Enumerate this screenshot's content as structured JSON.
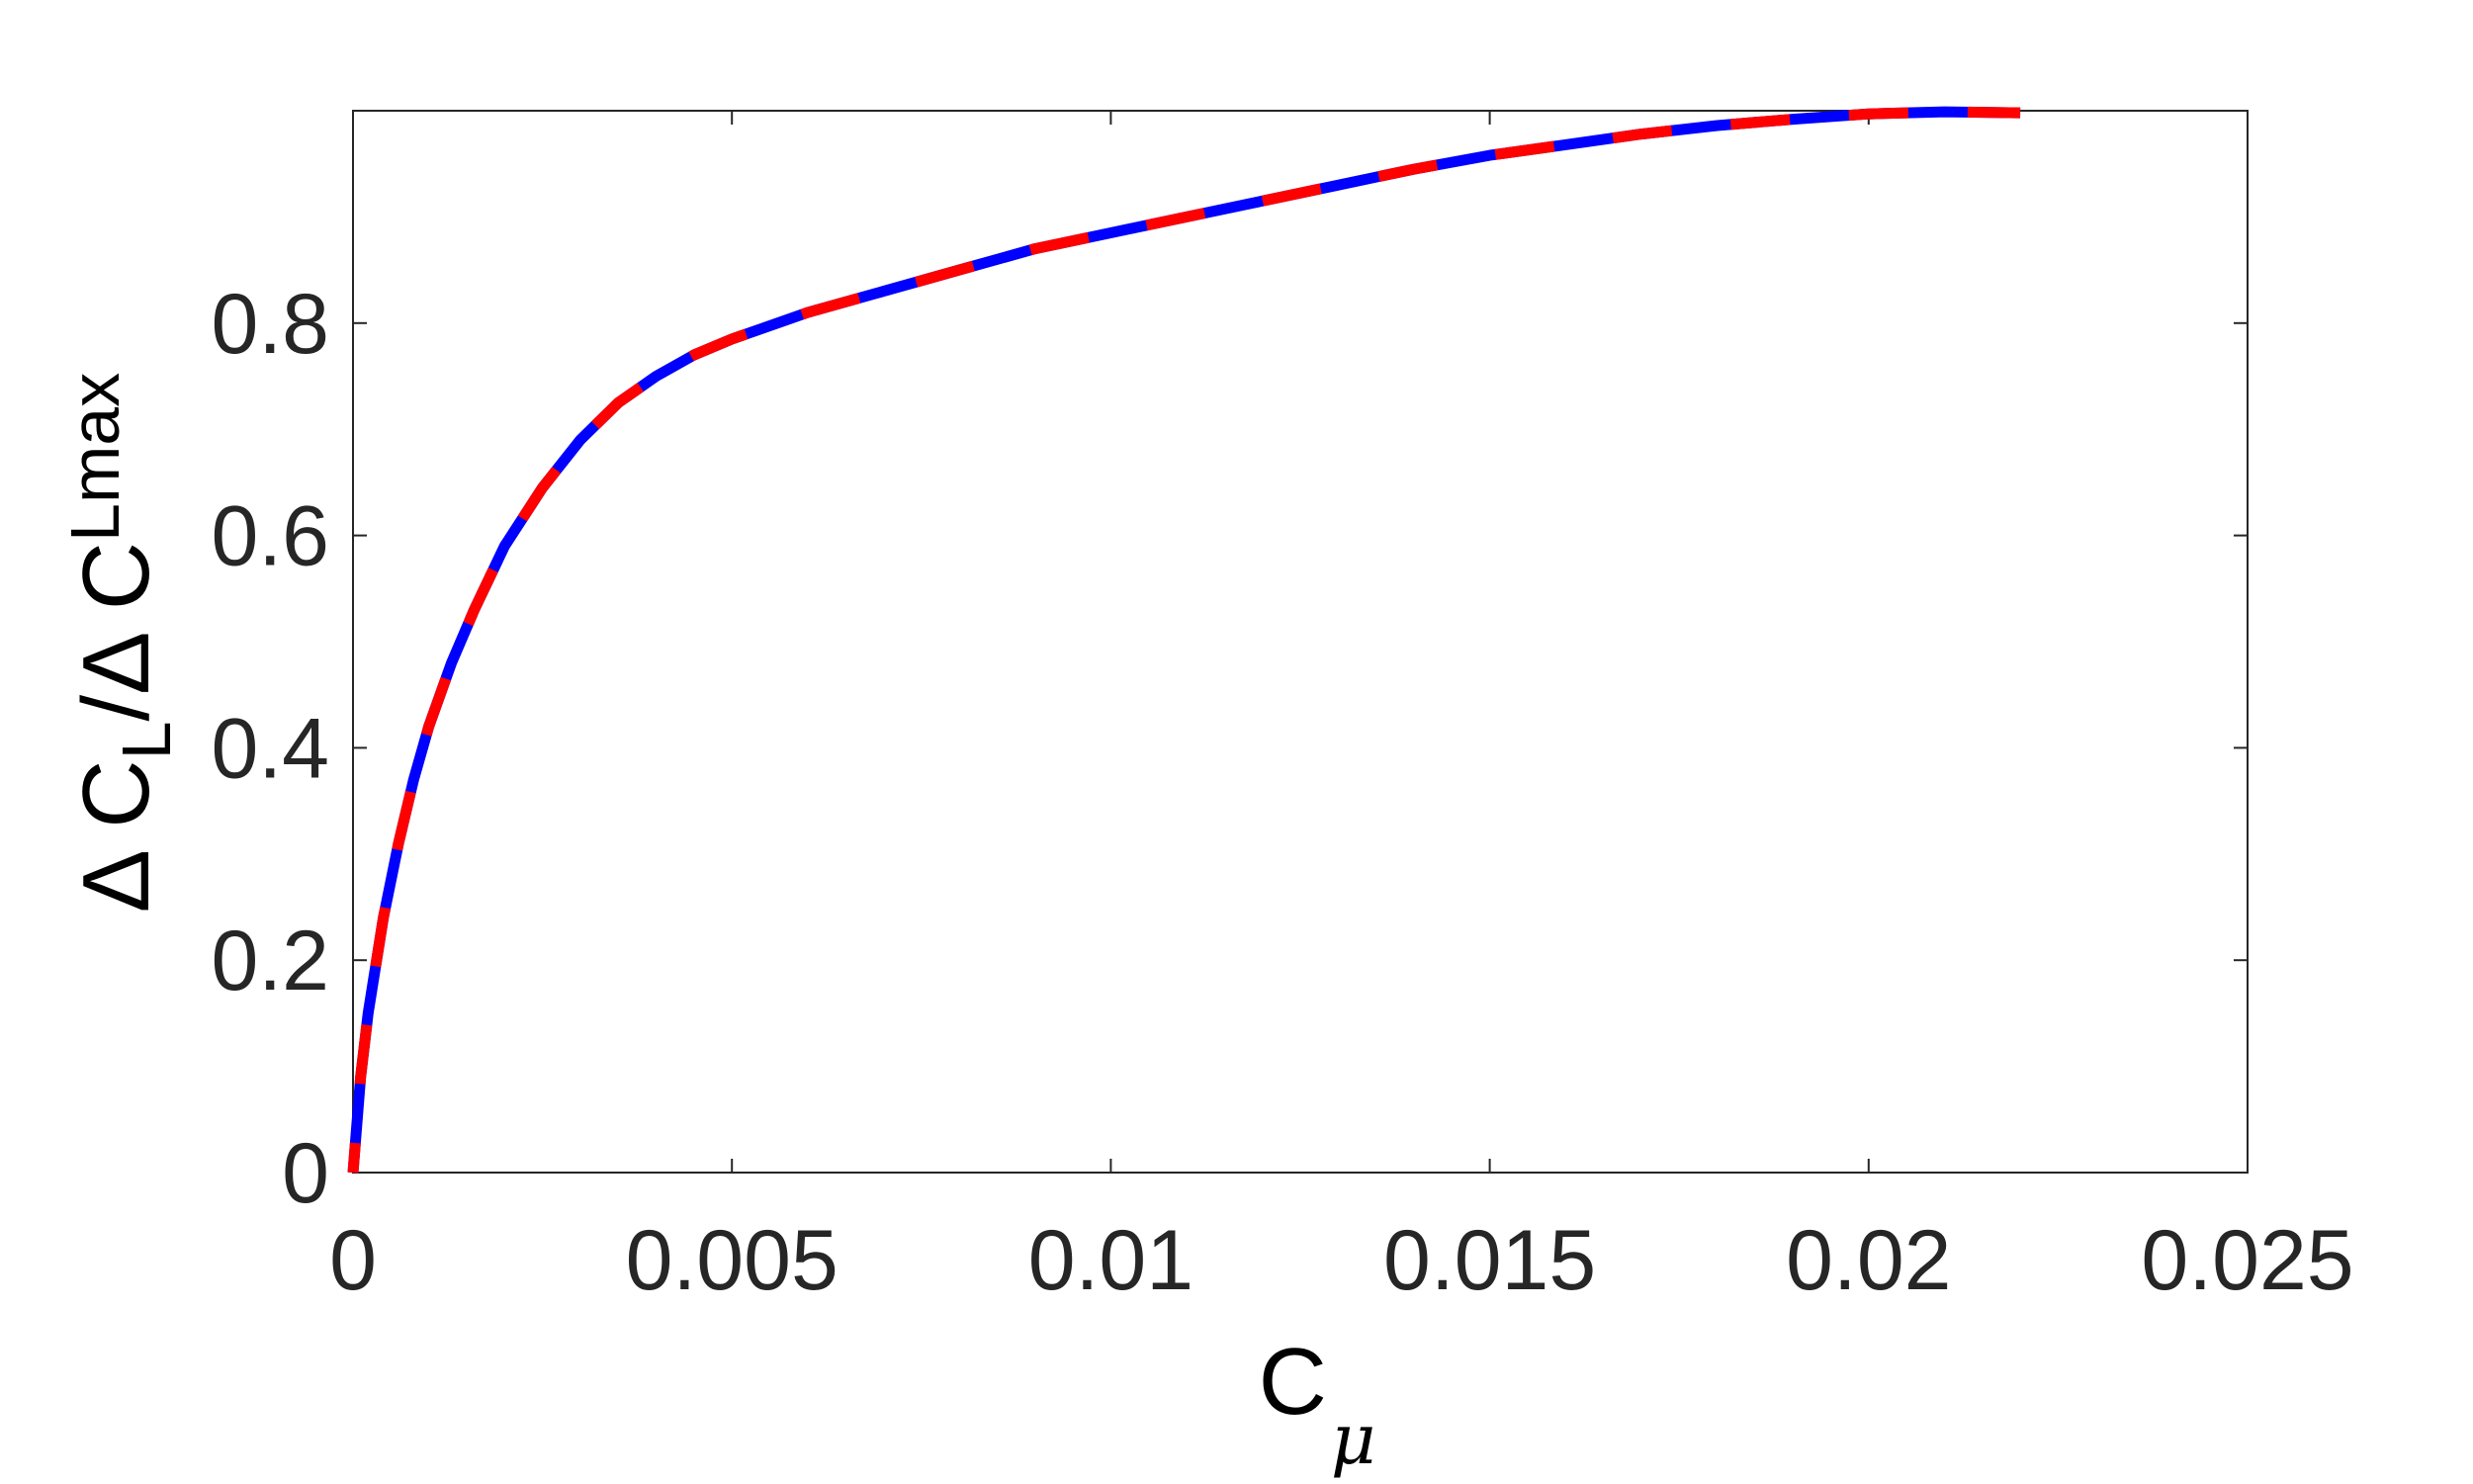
{
  "chart_data": {
    "type": "line",
    "title": "",
    "xlabel": {
      "main": "C",
      "sub": "μ"
    },
    "ylabel": {
      "part1": "Δ C",
      "sub1": "L",
      "part2": "/Δ C",
      "sub2": "Lmax"
    },
    "xlim": [
      0,
      0.025
    ],
    "ylim": [
      0,
      1.0
    ],
    "xticks": [
      0,
      0.005,
      0.01,
      0.015,
      0.02,
      0.025
    ],
    "xtick_labels": [
      "0",
      "0.005",
      "0.01",
      "0.015",
      "0.02",
      "0.025"
    ],
    "yticks": [
      0,
      0.2,
      0.4,
      0.6,
      0.8
    ],
    "ytick_labels": [
      "0",
      "0.2",
      "0.4",
      "0.6",
      "0.8"
    ],
    "grid": false,
    "legend": "none",
    "series": [
      {
        "style": "dashed two-tone",
        "colors": [
          "#0000ff",
          "#ff0000"
        ],
        "x": [
          0,
          0.0001,
          0.0002,
          0.0004,
          0.0006,
          0.0008,
          0.001,
          0.0013,
          0.0016,
          0.002,
          0.0025,
          0.003,
          0.0035,
          0.004,
          0.0045,
          0.005,
          0.006,
          0.007,
          0.008,
          0.009,
          0.01,
          0.011,
          0.012,
          0.013,
          0.014,
          0.015,
          0.016,
          0.017,
          0.018,
          0.019,
          0.02,
          0.021,
          0.022
        ],
        "y": [
          0,
          0.09,
          0.15,
          0.24,
          0.31,
          0.37,
          0.42,
          0.48,
          0.53,
          0.59,
          0.645,
          0.69,
          0.725,
          0.75,
          0.77,
          0.785,
          0.81,
          0.83,
          0.85,
          0.87,
          0.885,
          0.9,
          0.915,
          0.93,
          0.945,
          0.958,
          0.968,
          0.978,
          0.986,
          0.992,
          0.997,
          0.999,
          0.998
        ]
      }
    ]
  }
}
